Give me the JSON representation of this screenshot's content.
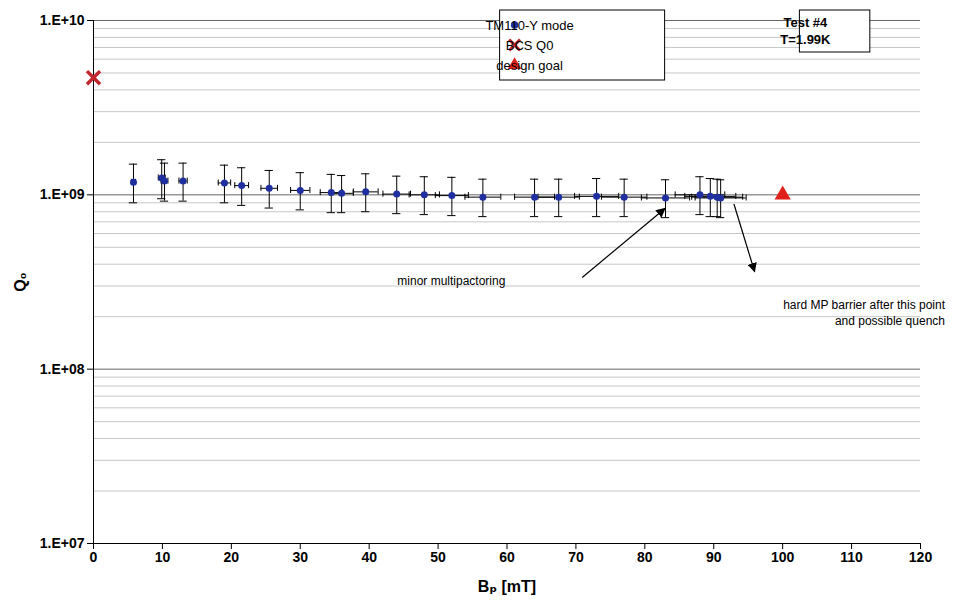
{
  "chart_data": {
    "type": "scatter",
    "log": "y",
    "grid": true,
    "legend": "top",
    "x_label": "Bₚ [mT]",
    "y_label": "Q₀",
    "xlim": [
      0,
      120
    ],
    "xticks": [
      0,
      10,
      20,
      30,
      40,
      50,
      60,
      70,
      80,
      90,
      100,
      110,
      120
    ],
    "ylim": [
      10000000.0,
      10000000000.0
    ],
    "yticks": [
      {
        "value": 10000000.0,
        "label": "1.E+07"
      },
      {
        "value": 100000000.0,
        "label": "1.E+08"
      },
      {
        "value": 1000000000.0,
        "label": "1.E+09"
      },
      {
        "value": 10000000000.0,
        "label": "1.E+10"
      }
    ],
    "series": [
      {
        "name": "TM110-Y mode",
        "color": "#1f2f9f",
        "marker": "circle",
        "x": [
          5.8,
          9.9,
          10.3,
          13.0,
          19.0,
          21.5,
          25.5,
          30.0,
          34.5,
          36.0,
          39.5,
          44.0,
          48.0,
          52.0,
          56.5,
          64.0,
          67.5,
          73.0,
          77.0,
          83.0,
          88.0,
          89.5,
          90.5,
          91.0
        ],
        "values": [
          1180000000.0,
          1250000000.0,
          1200000000.0,
          1200000000.0,
          1170000000.0,
          1130000000.0,
          1090000000.0,
          1060000000.0,
          1030000000.0,
          1020000000.0,
          1040000000.0,
          1010000000.0,
          1000000000.0,
          990000000.0,
          970000000.0,
          970000000.0,
          970000000.0,
          980000000.0,
          970000000.0,
          960000000.0,
          1000000000.0,
          980000000.0,
          970000000.0,
          960000000.0
        ],
        "y_error_minus": [
          280000000.0,
          300000000.0,
          280000000.0,
          280000000.0,
          270000000.0,
          260000000.0,
          250000000.0,
          240000000.0,
          240000000.0,
          230000000.0,
          240000000.0,
          230000000.0,
          230000000.0,
          230000000.0,
          220000000.0,
          220000000.0,
          220000000.0,
          230000000.0,
          220000000.0,
          220000000.0,
          230000000.0,
          230000000.0,
          220000000.0,
          220000000.0
        ],
        "y_error_plus": [
          320000000.0,
          340000000.0,
          320000000.0,
          320000000.0,
          310000000.0,
          300000000.0,
          290000000.0,
          280000000.0,
          280000000.0,
          270000000.0,
          280000000.0,
          270000000.0,
          270000000.0,
          270000000.0,
          260000000.0,
          260000000.0,
          260000000.0,
          260000000.0,
          260000000.0,
          260000000.0,
          270000000.0,
          260000000.0,
          260000000.0,
          260000000.0
        ],
        "x_error": [
          0.3,
          0.5,
          0.5,
          0.6,
          0.9,
          1.0,
          1.2,
          1.4,
          1.6,
          1.7,
          1.8,
          2.0,
          2.2,
          2.4,
          2.6,
          2.9,
          3.0,
          3.2,
          3.3,
          3.5,
          3.6,
          3.7,
          3.7,
          3.7
        ]
      },
      {
        "name": "BCS Q0",
        "color": "#c0282d",
        "marker": "x",
        "x": [
          0
        ],
        "values": [
          4700000000.0
        ]
      },
      {
        "name": "design goal",
        "color": "#e0201b",
        "marker": "triangle",
        "x": [
          100
        ],
        "values": [
          1000000000.0
        ]
      }
    ],
    "annotations": [
      {
        "text": [
          "Test #4",
          "T=1.99K"
        ]
      },
      {
        "text": [
          "minor multipactoring"
        ]
      },
      {
        "text": [
          "hard MP barrier after this point",
          "and possible quench"
        ]
      }
    ]
  }
}
